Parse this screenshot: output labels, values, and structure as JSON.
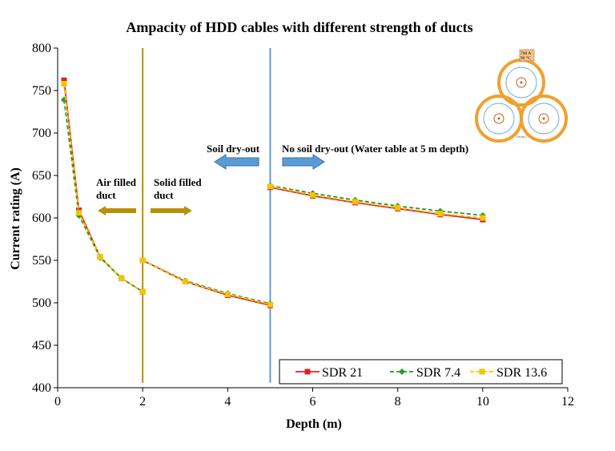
{
  "chart_data": {
    "type": "line",
    "title": "Ampacity of HDD cables with different strength of ducts",
    "xlabel": "Depth (m)",
    "ylabel": "Current rating (A)",
    "xlim": [
      0,
      12
    ],
    "ylim": [
      400,
      800
    ],
    "xticks": [
      0,
      2,
      4,
      6,
      8,
      10,
      12
    ],
    "yticks": [
      400,
      450,
      500,
      550,
      600,
      650,
      700,
      750,
      800
    ],
    "grid": false,
    "legend_position": "bottom-right",
    "series": [
      {
        "name": "SDR 21",
        "color": "#e02020",
        "dash": "solid",
        "marker": "square",
        "segments": [
          [
            [
              0.15,
              762
            ],
            [
              0.5,
              609
            ],
            [
              1.0,
              554
            ],
            [
              1.5,
              529
            ],
            [
              2.0,
              513
            ]
          ],
          [
            [
              2.0,
              550
            ],
            [
              3.0,
              525
            ],
            [
              4.0,
              509
            ],
            [
              5.0,
              497
            ]
          ],
          [
            [
              5.0,
              636
            ],
            [
              6.0,
              626
            ],
            [
              7.0,
              618
            ],
            [
              8.0,
              611
            ],
            [
              9.0,
              604
            ],
            [
              10.0,
              598
            ]
          ]
        ]
      },
      {
        "name": "SDR 7.4",
        "color": "#2a9a2a",
        "dash": "dashed",
        "marker": "diamond",
        "segments": [
          [
            [
              0.15,
              739
            ],
            [
              0.5,
              603
            ],
            [
              1.0,
              553
            ],
            [
              1.5,
              529
            ],
            [
              2.0,
              513
            ]
          ],
          [
            [
              2.0,
              550
            ],
            [
              3.0,
              526
            ],
            [
              4.0,
              511
            ],
            [
              5.0,
              499
            ]
          ],
          [
            [
              5.0,
              638
            ],
            [
              6.0,
              629
            ],
            [
              7.0,
              621
            ],
            [
              8.0,
              614
            ],
            [
              9.0,
              608
            ],
            [
              10.0,
              603
            ]
          ]
        ]
      },
      {
        "name": "SDR 13.6",
        "color": "#f5c400",
        "dash": "dashed",
        "marker": "square",
        "segments": [
          [
            [
              0.15,
              758
            ],
            [
              0.5,
              606
            ],
            [
              1.0,
              554
            ],
            [
              1.5,
              529
            ],
            [
              2.0,
              513
            ]
          ],
          [
            [
              2.0,
              550
            ],
            [
              3.0,
              525
            ],
            [
              4.0,
              510
            ],
            [
              5.0,
              498
            ]
          ],
          [
            [
              5.0,
              637
            ],
            [
              6.0,
              627
            ],
            [
              7.0,
              619
            ],
            [
              8.0,
              612
            ],
            [
              9.0,
              605
            ],
            [
              10.0,
              600
            ]
          ]
        ]
      }
    ],
    "vertical_lines": [
      {
        "x": 2,
        "color": "#b8900a"
      },
      {
        "x": 5,
        "color": "#5f9fd6"
      }
    ],
    "annotations": {
      "air_filled": "Air filled duct",
      "solid_filled": "Solid filled duct",
      "soil_dry_out": "Soil dry-out",
      "no_soil_dry_out": "No soil dry-out (Water table at 5 m depth)"
    },
    "inset": {
      "label_value": "760 A",
      "label_temp": "90 °C",
      "caption": "Circuit 1"
    }
  }
}
